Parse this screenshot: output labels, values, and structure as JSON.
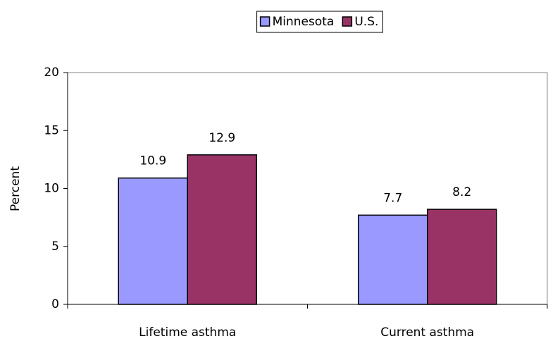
{
  "chart_data": {
    "type": "bar",
    "categories": [
      "Lifetime asthma",
      "Current asthma"
    ],
    "series": [
      {
        "name": "Minnesota",
        "color": "#9999ff",
        "values": [
          10.9,
          7.7
        ]
      },
      {
        "name": "U.S.",
        "color": "#993366",
        "values": [
          12.9,
          8.2
        ]
      }
    ],
    "y_label": "Percent",
    "ylim": [
      0,
      20
    ],
    "yticks": [
      0,
      5,
      10,
      15,
      20
    ],
    "legend": "top",
    "grid": false
  }
}
